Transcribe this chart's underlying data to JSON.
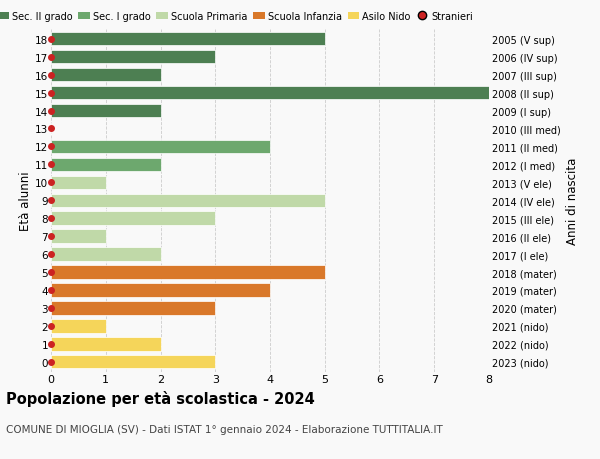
{
  "ages": [
    18,
    17,
    16,
    15,
    14,
    13,
    12,
    11,
    10,
    9,
    8,
    7,
    6,
    5,
    4,
    3,
    2,
    1,
    0
  ],
  "right_labels": [
    "2005 (V sup)",
    "2006 (IV sup)",
    "2007 (III sup)",
    "2008 (II sup)",
    "2009 (I sup)",
    "2010 (III med)",
    "2011 (II med)",
    "2012 (I med)",
    "2013 (V ele)",
    "2014 (IV ele)",
    "2015 (III ele)",
    "2016 (II ele)",
    "2017 (I ele)",
    "2018 (mater)",
    "2019 (mater)",
    "2020 (mater)",
    "2021 (nido)",
    "2022 (nido)",
    "2023 (nido)"
  ],
  "values": [
    5,
    3,
    2,
    8,
    2,
    0,
    4,
    2,
    1,
    5,
    3,
    1,
    2,
    5,
    4,
    3,
    1,
    2,
    3
  ],
  "colors": [
    "#4d7f52",
    "#4d7f52",
    "#4d7f52",
    "#4d7f52",
    "#4d7f52",
    "#6da86e",
    "#6da86e",
    "#6da86e",
    "#c0d9a8",
    "#c0d9a8",
    "#c0d9a8",
    "#c0d9a8",
    "#c0d9a8",
    "#d9782a",
    "#d9782a",
    "#d9782a",
    "#f5d55a",
    "#f5d55a",
    "#f5d55a"
  ],
  "stranieri_color": "#cc2222",
  "legend_labels": [
    "Sec. II grado",
    "Sec. I grado",
    "Scuola Primaria",
    "Scuola Infanzia",
    "Asilo Nido",
    "Stranieri"
  ],
  "legend_colors": [
    "#4d7f52",
    "#6da86e",
    "#c0d9a8",
    "#d9782a",
    "#f5d55a",
    "#cc2222"
  ],
  "title": "Popolazione per età scolastica - 2024",
  "subtitle": "COMUNE DI MIOGLIA (SV) - Dati ISTAT 1° gennaio 2024 - Elaborazione TUTTITALIA.IT",
  "ylabel_left": "Età alunni",
  "ylabel_right": "Anni di nascita",
  "xlim_max": 8,
  "ymin": -0.55,
  "ymax": 18.55,
  "background_color": "#f9f9f9",
  "bar_height": 0.75,
  "grid_color": "#cccccc",
  "bar_linewidth": 0.5,
  "bar_edgecolor": "#ffffff"
}
